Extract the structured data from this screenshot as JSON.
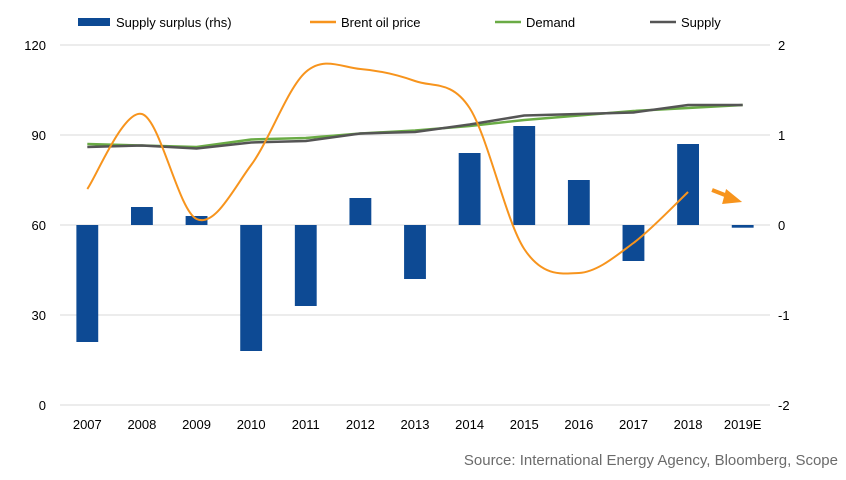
{
  "chart_data": {
    "type": "combo",
    "categories": [
      "2007",
      "2008",
      "2009",
      "2010",
      "2011",
      "2012",
      "2013",
      "2014",
      "2015",
      "2016",
      "2017",
      "2018",
      "2019E"
    ],
    "left_axis": {
      "ylim": [
        0,
        120
      ],
      "ticks": [
        "0",
        "30",
        "60",
        "90",
        "120"
      ]
    },
    "right_axis": {
      "ylim": [
        -2,
        2
      ],
      "ticks": [
        "-2",
        "-1",
        "0",
        "1",
        "2"
      ]
    },
    "grid": true,
    "legend_position": "top",
    "series": [
      {
        "name": "Supply surplus (rhs)",
        "type": "bar",
        "axis": "right",
        "color": "#0d4a94",
        "values": [
          -1.3,
          0.2,
          0.1,
          -1.4,
          -0.9,
          0.3,
          -0.6,
          0.8,
          1.1,
          0.5,
          -0.4,
          0.9,
          -0.03
        ]
      },
      {
        "name": "Brent oil price",
        "type": "line",
        "axis": "left",
        "color": "#f7941d",
        "values": [
          72,
          97,
          62,
          80,
          111,
          112,
          108,
          99,
          52,
          44,
          54,
          71,
          null
        ]
      },
      {
        "name": "Demand",
        "type": "line",
        "axis": "left",
        "color": "#6aab45",
        "values": [
          87,
          86.5,
          86,
          88.5,
          89,
          90.5,
          91.5,
          93,
          95,
          96.5,
          98,
          99,
          100
        ]
      },
      {
        "name": "Supply",
        "type": "line",
        "axis": "left",
        "color": "#555555",
        "values": [
          86,
          86.5,
          85.5,
          87.5,
          88,
          90.5,
          91,
          93.5,
          96.5,
          97,
          97.5,
          100,
          100
        ]
      }
    ],
    "annotation": {
      "type": "arrow",
      "color": "#f7941d",
      "direction": "down-right"
    }
  },
  "source_text": "Source: International Energy Agency, Bloomberg, Scope"
}
